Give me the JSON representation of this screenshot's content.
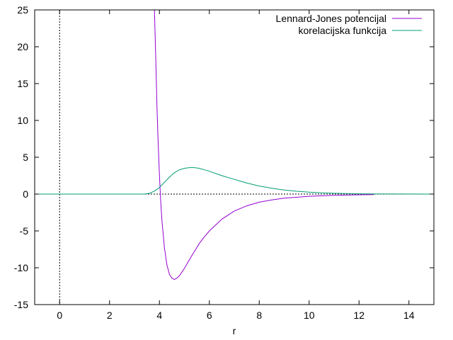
{
  "chart_data": {
    "type": "line",
    "title": "",
    "xlabel": "r",
    "ylabel": "",
    "xlim": [
      -1,
      15
    ],
    "ylim": [
      -15,
      25
    ],
    "xticks": [
      0,
      2,
      4,
      6,
      8,
      10,
      12,
      14
    ],
    "yticks": [
      -15,
      -10,
      -5,
      0,
      5,
      10,
      15,
      20,
      25
    ],
    "grid": false,
    "zero_lines": true,
    "legend_position": "top-right",
    "series": [
      {
        "name": "Lennard-Jones potencijal",
        "color": "#9400d3",
        "x": [
          3.8,
          3.85,
          3.9,
          3.95,
          4.0,
          4.05,
          4.1,
          4.2,
          4.3,
          4.4,
          4.5,
          4.6,
          4.7,
          4.8,
          5.0,
          5.2,
          5.4,
          5.6,
          5.8,
          6.0,
          6.5,
          7.0,
          7.5,
          8.0,
          8.5,
          9.0,
          10.0,
          11.0,
          12.0,
          12.6
        ],
        "y": [
          25.0,
          18.6,
          12.1,
          6.8,
          2.5,
          -0.9,
          -3.6,
          -7.3,
          -9.6,
          -10.9,
          -11.4,
          -11.6,
          -11.4,
          -11.1,
          -10.1,
          -8.9,
          -7.8,
          -6.7,
          -5.8,
          -5.0,
          -3.4,
          -2.3,
          -1.6,
          -1.1,
          -0.8,
          -0.56,
          -0.3,
          -0.17,
          -0.1,
          -0.07
        ]
      },
      {
        "name": "korelacijska funkcija",
        "color": "#009e73",
        "x": [
          -1,
          3.4,
          3.6,
          3.8,
          4.0,
          4.2,
          4.4,
          4.6,
          4.8,
          5.0,
          5.2,
          5.4,
          5.6,
          5.8,
          6.0,
          6.5,
          7.0,
          7.5,
          8.0,
          8.5,
          9.0,
          9.5,
          10.0,
          10.5,
          11.0,
          11.5,
          12.0,
          12.6,
          15
        ],
        "y": [
          0.0,
          0.0,
          0.1,
          0.4,
          0.9,
          1.6,
          2.3,
          2.9,
          3.3,
          3.5,
          3.6,
          3.6,
          3.5,
          3.3,
          3.1,
          2.5,
          2.0,
          1.5,
          1.1,
          0.8,
          0.55,
          0.38,
          0.26,
          0.17,
          0.11,
          0.07,
          0.04,
          0.02,
          0.0
        ]
      }
    ]
  }
}
